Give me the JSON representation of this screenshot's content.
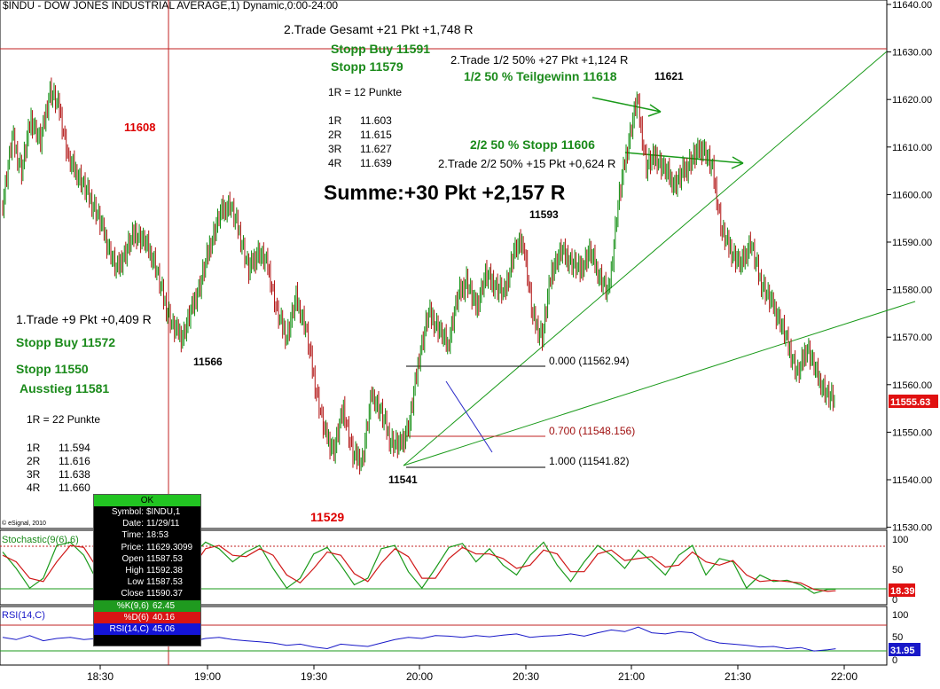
{
  "header": {
    "title": "$INDU - DOW JONES INDUSTRIAL AVERAGE,1) Dynamic,0:00-24:00"
  },
  "colors": {
    "price": "#0a6a0a",
    "up": "#0a8a0a",
    "down": "#b01010",
    "k_line": "#1a9a1a",
    "d_line": "#d01818",
    "rsi_line": "#1818c8",
    "ref_red": "#c02020",
    "green_ann": "#1a8a1a"
  },
  "price_axis": {
    "ticks": [
      "11640.00",
      "11630.00",
      "11620.00",
      "11610.00",
      "11600.00",
      "11590.00",
      "11580.00",
      "11570.00",
      "11560.00",
      "11550.00",
      "11540.00",
      "11530.00"
    ],
    "last_label": "11555.63"
  },
  "time_axis": {
    "ticks": [
      "18:30",
      "19:00",
      "19:30",
      "20:00",
      "20:30",
      "21:00",
      "21:30",
      "22:00"
    ]
  },
  "stoch_axis": {
    "ticks": [
      "100",
      "50",
      "0"
    ],
    "last_label": "18.39"
  },
  "rsi_axis": {
    "ticks": [
      "100",
      "50",
      "0"
    ],
    "last_label": "31.95"
  },
  "panel_labels": {
    "stoch": "Stochastic(9(6),6)",
    "rsi": "RSI(14,C)",
    "copyright": "© eSignal, 2010"
  },
  "annotations": {
    "trade2_total": "2.Trade Gesamt +21 Pkt +1,748 R",
    "stop_buy_2": "Stopp Buy 11591",
    "stop_2": "Stopp 11579",
    "r_eq_12": "1R =    12 Punkte",
    "r_table_2": [
      {
        "k": "1R",
        "v": "11.603"
      },
      {
        "k": "2R",
        "v": "11.615"
      },
      {
        "k": "3R",
        "v": "11.627"
      },
      {
        "k": "4R",
        "v": "11.639"
      }
    ],
    "trade2_half": "2.Trade 1/2 50% +27 Pkt +1,124 R",
    "partial_profit": "1/2 50 % Teilgewinn 11618",
    "high_11621": "11621",
    "stop_half": "2/2 50 % Stopp 11606",
    "trade2_2half": "2.Trade 2/2 50% +15 Pkt +0,624 R",
    "sum": "Summe:+30 Pkt +2,157 R",
    "low_11593": "11593",
    "red_11608": "11608",
    "trade1": "1.Trade +9 Pkt +0,409 R",
    "stop_buy_1": "Stopp Buy 11572",
    "stop_1": "Stopp 11550",
    "exit_1": "Ausstieg 11581",
    "r_eq_22": "1R =    22 Punkte",
    "r_table_1": [
      {
        "k": "1R",
        "v": "11.594"
      },
      {
        "k": "2R",
        "v": "11.616"
      },
      {
        "k": "3R",
        "v": "11.638"
      },
      {
        "k": "4R",
        "v": "11.660"
      }
    ],
    "low_11566": "11566",
    "low_11541": "11541",
    "red_11529": "11529",
    "fib_0": "0.000 (11562.94)",
    "fib_07": "0.700 (11548.156)",
    "fib_1": "1.000 (11541.82)"
  },
  "databox": {
    "ok": "OK",
    "rows": [
      {
        "k": "Symbol:",
        "v": "$INDU,1"
      },
      {
        "k": "Date:",
        "v": "11/29/11"
      },
      {
        "k": "Time:",
        "v": "18:53"
      },
      {
        "k": "Price:",
        "v": "11629.3099"
      },
      {
        "k": "Open",
        "v": "11587.53"
      },
      {
        "k": "High",
        "v": "11592.38"
      },
      {
        "k": "Low",
        "v": "11587.53"
      },
      {
        "k": "Close",
        "v": "11590.37"
      }
    ],
    "k_label": "%K(9,6)",
    "k_value": "62.45",
    "d_label": "%D(6)",
    "d_value": "40.16",
    "rsi_label": "RSI(14,C)",
    "rsi_value": "45.06"
  },
  "chart_data": {
    "type": "candlestick",
    "title": "$INDU - DOW JONES INDUSTRIAL AVERAGE,1) Dynamic,0:00-24:00",
    "x_range": [
      "18:05",
      "21:57"
    ],
    "ylim": [
      11530,
      11640
    ],
    "price_path": [
      [
        0,
        11598
      ],
      [
        7,
        11612
      ],
      [
        14,
        11605
      ],
      [
        21,
        11616
      ],
      [
        28,
        11611
      ],
      [
        35,
        11622
      ],
      [
        42,
        11618
      ],
      [
        49,
        11607
      ],
      [
        56,
        11604
      ],
      [
        63,
        11600
      ],
      [
        70,
        11596
      ],
      [
        77,
        11590
      ],
      [
        84,
        11584
      ],
      [
        91,
        11588
      ],
      [
        98,
        11592
      ],
      [
        105,
        11590
      ],
      [
        112,
        11586
      ],
      [
        119,
        11578
      ],
      [
        126,
        11572
      ],
      [
        133,
        11570
      ],
      [
        140,
        11576
      ],
      [
        147,
        11582
      ],
      [
        154,
        11590
      ],
      [
        161,
        11596
      ],
      [
        168,
        11598
      ],
      [
        175,
        11592
      ],
      [
        182,
        11584
      ],
      [
        189,
        11588
      ],
      [
        196,
        11585
      ],
      [
        203,
        11575
      ],
      [
        210,
        11570
      ],
      [
        217,
        11578
      ],
      [
        224,
        11572
      ],
      [
        231,
        11560
      ],
      [
        238,
        11550
      ],
      [
        245,
        11546
      ],
      [
        252,
        11555
      ],
      [
        259,
        11545
      ],
      [
        266,
        11544
      ],
      [
        273,
        11558
      ],
      [
        280,
        11554
      ],
      [
        287,
        11548
      ],
      [
        294,
        11547
      ],
      [
        301,
        11552
      ],
      [
        308,
        11566
      ],
      [
        315,
        11575
      ],
      [
        322,
        11572
      ],
      [
        329,
        11568
      ],
      [
        336,
        11578
      ],
      [
        343,
        11582
      ],
      [
        350,
        11576
      ],
      [
        357,
        11583
      ],
      [
        364,
        11581
      ],
      [
        371,
        11579
      ],
      [
        378,
        11588
      ],
      [
        385,
        11590
      ],
      [
        392,
        11574
      ],
      [
        399,
        11570
      ],
      [
        406,
        11584
      ],
      [
        413,
        11588
      ],
      [
        420,
        11586
      ],
      [
        427,
        11584
      ],
      [
        434,
        11588
      ],
      [
        441,
        11583
      ],
      [
        448,
        11579
      ],
      [
        455,
        11598
      ],
      [
        462,
        11610
      ],
      [
        469,
        11620
      ],
      [
        476,
        11606
      ],
      [
        483,
        11608
      ],
      [
        490,
        11605
      ],
      [
        497,
        11602
      ],
      [
        504,
        11605
      ],
      [
        511,
        11608
      ],
      [
        518,
        11610
      ],
      [
        525,
        11605
      ],
      [
        532,
        11592
      ],
      [
        539,
        11588
      ],
      [
        546,
        11585
      ],
      [
        553,
        11590
      ],
      [
        560,
        11582
      ],
      [
        567,
        11578
      ],
      [
        574,
        11574
      ],
      [
        581,
        11568
      ],
      [
        588,
        11562
      ],
      [
        595,
        11568
      ],
      [
        602,
        11562
      ],
      [
        609,
        11558
      ],
      [
        616,
        11556
      ]
    ],
    "stoch_k": [
      [
        0,
        75
      ],
      [
        10,
        50
      ],
      [
        20,
        20
      ],
      [
        30,
        35
      ],
      [
        40,
        85
      ],
      [
        50,
        90
      ],
      [
        60,
        70
      ],
      [
        70,
        30
      ],
      [
        80,
        60
      ],
      [
        90,
        88
      ],
      [
        100,
        70
      ],
      [
        110,
        40
      ],
      [
        120,
        20
      ],
      [
        130,
        30
      ],
      [
        140,
        70
      ],
      [
        150,
        90
      ],
      [
        160,
        80
      ],
      [
        170,
        60
      ],
      [
        180,
        75
      ],
      [
        190,
        85
      ],
      [
        200,
        50
      ],
      [
        210,
        20
      ],
      [
        220,
        35
      ],
      [
        230,
        72
      ],
      [
        240,
        82
      ],
      [
        250,
        55
      ],
      [
        260,
        25
      ],
      [
        270,
        35
      ],
      [
        280,
        80
      ],
      [
        290,
        85
      ],
      [
        300,
        45
      ],
      [
        310,
        20
      ],
      [
        320,
        50
      ],
      [
        330,
        82
      ],
      [
        340,
        88
      ],
      [
        350,
        60
      ],
      [
        360,
        80
      ],
      [
        370,
        55
      ],
      [
        380,
        40
      ],
      [
        390,
        70
      ],
      [
        400,
        90
      ],
      [
        410,
        55
      ],
      [
        420,
        30
      ],
      [
        430,
        60
      ],
      [
        440,
        85
      ],
      [
        450,
        70
      ],
      [
        460,
        50
      ],
      [
        470,
        78
      ],
      [
        480,
        60
      ],
      [
        490,
        40
      ],
      [
        500,
        70
      ],
      [
        510,
        85
      ],
      [
        520,
        40
      ],
      [
        530,
        65
      ],
      [
        540,
        60
      ],
      [
        550,
        20
      ],
      [
        560,
        40
      ],
      [
        570,
        30
      ],
      [
        580,
        32
      ],
      [
        590,
        25
      ],
      [
        600,
        12
      ],
      [
        610,
        18
      ],
      [
        616,
        18.39
      ]
    ],
    "stoch_d": [
      [
        0,
        70
      ],
      [
        10,
        60
      ],
      [
        20,
        35
      ],
      [
        30,
        30
      ],
      [
        40,
        60
      ],
      [
        50,
        85
      ],
      [
        60,
        82
      ],
      [
        70,
        50
      ],
      [
        80,
        45
      ],
      [
        90,
        75
      ],
      [
        100,
        80
      ],
      [
        110,
        60
      ],
      [
        120,
        35
      ],
      [
        130,
        25
      ],
      [
        140,
        50
      ],
      [
        150,
        80
      ],
      [
        160,
        85
      ],
      [
        170,
        70
      ],
      [
        180,
        68
      ],
      [
        190,
        80
      ],
      [
        200,
        70
      ],
      [
        210,
        40
      ],
      [
        220,
        28
      ],
      [
        230,
        50
      ],
      [
        240,
        75
      ],
      [
        250,
        70
      ],
      [
        260,
        42
      ],
      [
        270,
        30
      ],
      [
        280,
        58
      ],
      [
        290,
        80
      ],
      [
        300,
        68
      ],
      [
        310,
        35
      ],
      [
        320,
        35
      ],
      [
        330,
        65
      ],
      [
        340,
        82
      ],
      [
        350,
        72
      ],
      [
        360,
        72
      ],
      [
        370,
        65
      ],
      [
        380,
        50
      ],
      [
        390,
        55
      ],
      [
        400,
        78
      ],
      [
        410,
        72
      ],
      [
        420,
        45
      ],
      [
        430,
        45
      ],
      [
        440,
        72
      ],
      [
        450,
        78
      ],
      [
        460,
        62
      ],
      [
        470,
        65
      ],
      [
        480,
        68
      ],
      [
        490,
        52
      ],
      [
        500,
        55
      ],
      [
        510,
        75
      ],
      [
        520,
        60
      ],
      [
        530,
        55
      ],
      [
        540,
        62
      ],
      [
        550,
        40
      ],
      [
        560,
        30
      ],
      [
        570,
        32
      ],
      [
        580,
        30
      ],
      [
        590,
        28
      ],
      [
        600,
        18
      ],
      [
        610,
        15
      ],
      [
        616,
        16
      ]
    ],
    "rsi": [
      [
        0,
        52
      ],
      [
        10,
        48
      ],
      [
        20,
        55
      ],
      [
        30,
        46
      ],
      [
        40,
        50
      ],
      [
        50,
        52
      ],
      [
        60,
        48
      ],
      [
        70,
        50
      ],
      [
        80,
        47
      ],
      [
        90,
        45
      ],
      [
        100,
        48
      ],
      [
        110,
        45
      ],
      [
        120,
        40
      ],
      [
        130,
        42
      ],
      [
        140,
        45
      ],
      [
        150,
        50
      ],
      [
        160,
        52
      ],
      [
        170,
        48
      ],
      [
        180,
        46
      ],
      [
        190,
        44
      ],
      [
        200,
        42
      ],
      [
        210,
        38
      ],
      [
        220,
        40
      ],
      [
        230,
        35
      ],
      [
        240,
        32
      ],
      [
        250,
        40
      ],
      [
        260,
        38
      ],
      [
        270,
        36
      ],
      [
        280,
        42
      ],
      [
        290,
        48
      ],
      [
        300,
        52
      ],
      [
        310,
        50
      ],
      [
        320,
        55
      ],
      [
        330,
        54
      ],
      [
        340,
        52
      ],
      [
        350,
        55
      ],
      [
        360,
        53
      ],
      [
        370,
        56
      ],
      [
        380,
        58
      ],
      [
        390,
        52
      ],
      [
        400,
        54
      ],
      [
        410,
        55
      ],
      [
        420,
        58
      ],
      [
        430,
        54
      ],
      [
        440,
        60
      ],
      [
        450,
        65
      ],
      [
        460,
        62
      ],
      [
        470,
        70
      ],
      [
        480,
        60
      ],
      [
        490,
        58
      ],
      [
        500,
        62
      ],
      [
        510,
        60
      ],
      [
        520,
        48
      ],
      [
        530,
        42
      ],
      [
        540,
        40
      ],
      [
        550,
        38
      ],
      [
        560,
        35
      ],
      [
        570,
        36
      ],
      [
        580,
        32
      ],
      [
        590,
        34
      ],
      [
        600,
        28
      ],
      [
        610,
        30
      ],
      [
        616,
        31.95
      ]
    ]
  }
}
